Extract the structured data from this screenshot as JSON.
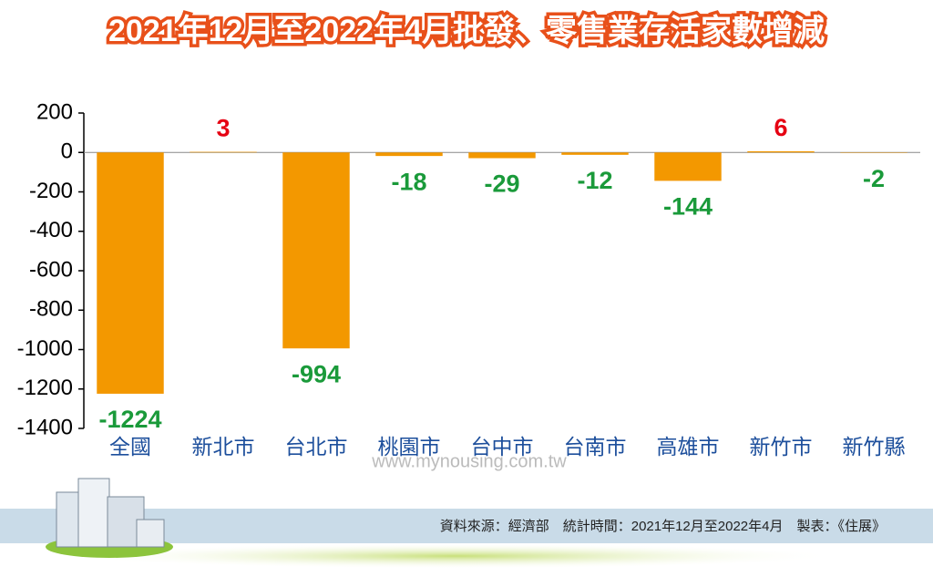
{
  "chart_data": {
    "type": "bar",
    "title": "2021年12月至2022年4月批發、零售業存活家數增減",
    "categories": [
      "全國",
      "新北市",
      "台北市",
      "桃園市",
      "台中市",
      "台南市",
      "高雄市",
      "新竹市",
      "新竹縣"
    ],
    "values": [
      -1224,
      3,
      -994,
      -18,
      -29,
      -12,
      -144,
      6,
      -2
    ],
    "color": "#f39800",
    "positive_label_color": "#e60012",
    "negative_label_color": "#1a9a3a",
    "ylim": [
      -1400,
      200
    ],
    "yticks": [
      200,
      0,
      -200,
      -400,
      -600,
      -800,
      -1000,
      -1200,
      -1400
    ],
    "watermark": "www.mynousing.com.tw",
    "source": "資料來源：經濟部　統計時間：2021年12月至2022年4月　製表：《住展》"
  }
}
